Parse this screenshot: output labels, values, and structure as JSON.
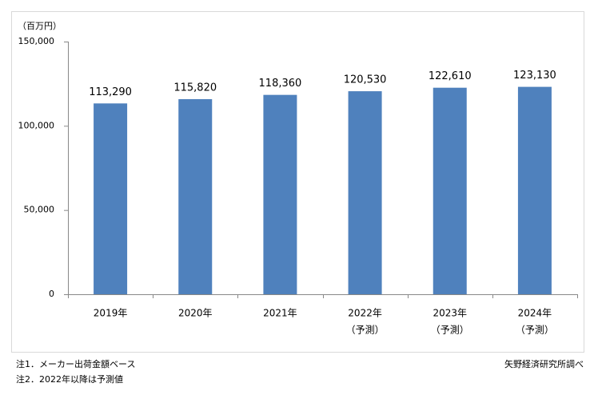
{
  "chart_data": {
    "type": "bar",
    "unit_label": "（百万円）",
    "categories": [
      "2019年",
      "2020年",
      "2021年",
      "2022年",
      "2023年",
      "2024年"
    ],
    "category_sublabels": [
      null,
      null,
      null,
      "（予測）",
      "（予測）",
      "（予測）"
    ],
    "values": [
      113290,
      115820,
      118360,
      120530,
      122610,
      123130
    ],
    "value_labels": [
      "113,290",
      "115,820",
      "118,360",
      "120,530",
      "122,610",
      "123,130"
    ],
    "color": "#4f81bd",
    "ylim": [
      0,
      150000
    ],
    "yticks": [
      0,
      {
        "value": 50000,
        "label": "50,000"
      },
      {
        "value": 100000,
        "label": "100,000"
      },
      {
        "value": 150000,
        "label": "150,000"
      }
    ],
    "grid": false,
    "notes": [
      "注1．メーカー出荷金額ベース",
      "注2．2022年以降は予測値"
    ],
    "source": "矢野経済研究所調べ"
  }
}
